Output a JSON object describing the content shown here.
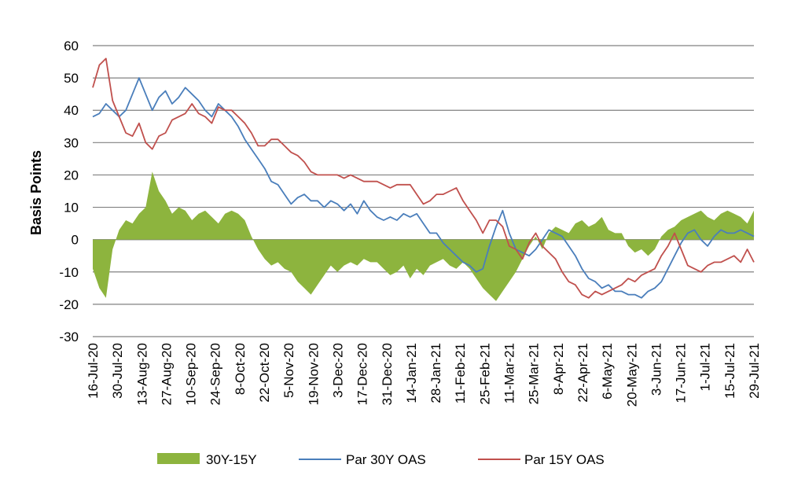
{
  "chart_data": {
    "type": "line",
    "ylabel": "Basis Points",
    "ylim": [
      -30,
      60
    ],
    "yticks": [
      -30,
      -20,
      -10,
      0,
      10,
      20,
      30,
      40,
      50,
      60
    ],
    "grid": "horizontal",
    "legend_position": "bottom",
    "x_tick_labels": [
      "16-Jul-20",
      "30-Jul-20",
      "13-Aug-20",
      "27-Aug-20",
      "10-Sep-20",
      "24-Sep-20",
      "8-Oct-20",
      "22-Oct-20",
      "5-Nov-20",
      "19-Nov-20",
      "3-Dec-20",
      "17-Dec-20",
      "31-Dec-20",
      "14-Jan-21",
      "28-Jan-21",
      "11-Feb-21",
      "25-Feb-21",
      "11-Mar-21",
      "25-Mar-21",
      "8-Apr-21",
      "22-Apr-21",
      "6-May-21",
      "20-May-21",
      "3-Jun-21",
      "17-Jun-21",
      "1-Jul-21",
      "15-Jul-21",
      "29-Jul-21"
    ],
    "series": [
      {
        "name": "30Y-15Y",
        "type": "area",
        "color": "#8DB43E",
        "values": [
          -9,
          -15,
          -18,
          -3,
          3,
          6,
          5,
          8,
          10,
          21,
          15,
          12,
          8,
          10,
          9,
          6,
          8,
          9,
          7,
          5,
          8,
          9,
          8,
          6,
          1,
          -3,
          -6,
          -8,
          -7,
          -9,
          -10,
          -13,
          -15,
          -17,
          -14,
          -11,
          -8,
          -10,
          -8,
          -7,
          -8,
          -6,
          -7,
          -7,
          -9,
          -11,
          -10,
          -8,
          -12,
          -9,
          -11,
          -8,
          -7,
          -6,
          -8,
          -9,
          -7,
          -9,
          -12,
          -15,
          -17,
          -19,
          -16,
          -13,
          -10,
          -6,
          -2,
          1,
          -3,
          2,
          4,
          3,
          2,
          5,
          6,
          4,
          5,
          7,
          3,
          2,
          2,
          -2,
          -4,
          -3,
          -5,
          -3,
          1,
          3,
          4,
          6,
          7,
          8,
          9,
          7,
          6,
          8,
          9,
          8,
          7,
          5,
          9
        ]
      },
      {
        "name": "Par 30Y OAS",
        "type": "line",
        "color": "#4A7EBB",
        "values": [
          38,
          39,
          42,
          40,
          38,
          40,
          45,
          50,
          45,
          40,
          44,
          46,
          42,
          44,
          47,
          45,
          43,
          40,
          38,
          42,
          40,
          38,
          35,
          31,
          28,
          25,
          22,
          18,
          17,
          14,
          11,
          13,
          14,
          12,
          12,
          10,
          12,
          11,
          9,
          11,
          8,
          12,
          9,
          7,
          6,
          7,
          6,
          8,
          7,
          8,
          5,
          2,
          2,
          -1,
          -3,
          -5,
          -7,
          -8,
          -10,
          -9,
          -2,
          4,
          9,
          2,
          -3,
          -4,
          -5,
          -3,
          0,
          3,
          2,
          1,
          -2,
          -5,
          -9,
          -12,
          -13,
          -15,
          -14,
          -16,
          -16,
          -17,
          -17,
          -18,
          -16,
          -15,
          -13,
          -9,
          -5,
          -1,
          2,
          3,
          0,
          -2,
          1,
          3,
          2,
          2,
          3,
          2,
          1
        ]
      },
      {
        "name": "Par 15Y OAS",
        "type": "line",
        "color": "#C0504D",
        "values": [
          47,
          54,
          56,
          43,
          38,
          33,
          32,
          36,
          30,
          28,
          32,
          33,
          37,
          38,
          39,
          42,
          39,
          38,
          36,
          41,
          40,
          40,
          38,
          36,
          33,
          29,
          29,
          31,
          31,
          29,
          27,
          26,
          24,
          21,
          20,
          20,
          20,
          20,
          19,
          20,
          19,
          18,
          18,
          18,
          17,
          16,
          17,
          17,
          17,
          14,
          11,
          12,
          14,
          14,
          15,
          16,
          12,
          9,
          6,
          2,
          6,
          6,
          4,
          -2,
          -3,
          -6,
          -1,
          2,
          -2,
          -4,
          -6,
          -10,
          -13,
          -14,
          -17,
          -18,
          -16,
          -17,
          -16,
          -15,
          -14,
          -12,
          -13,
          -11,
          -10,
          -9,
          -5,
          -2,
          2,
          -3,
          -8,
          -9,
          -10,
          -8,
          -7,
          -7,
          -6,
          -5,
          -7,
          -3,
          -7
        ]
      }
    ]
  }
}
